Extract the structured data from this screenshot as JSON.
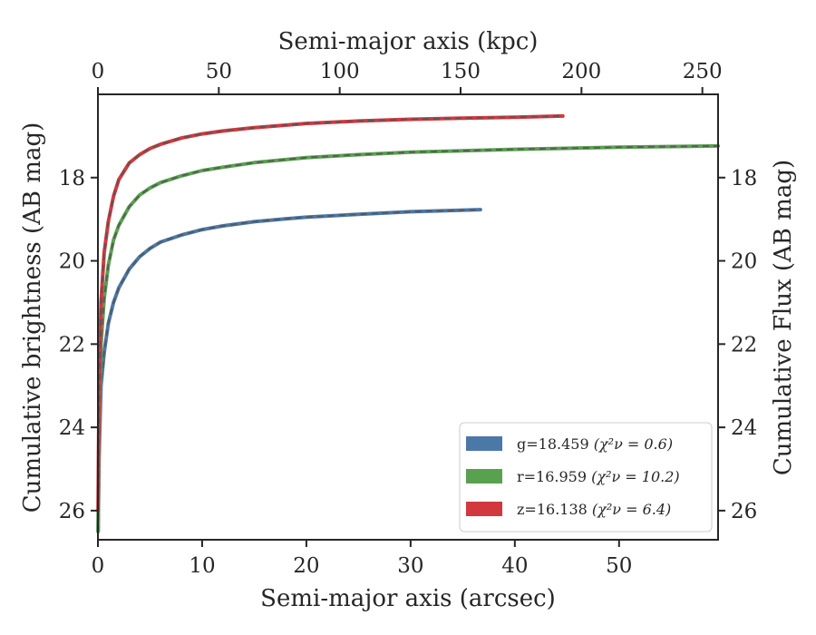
{
  "chart_data": {
    "type": "line",
    "title": "",
    "xlabel": "Semi-major axis (arcsec)",
    "xlabel_top": "Semi-major axis (kpc)",
    "ylabel": "Cumulative brightness (AB mag)",
    "ylabel_right": "Cumulative Flux (AB mag)",
    "xlim": [
      0,
      59.5
    ],
    "xlim_top": [
      0,
      256.5
    ],
    "ylim": [
      26.7,
      16.0
    ],
    "y_inverted": true,
    "xticks": [
      0,
      10,
      20,
      30,
      40,
      50
    ],
    "xticks_top": [
      0,
      50,
      100,
      150,
      200,
      250
    ],
    "yticks": [
      18,
      20,
      22,
      24,
      26
    ],
    "grid": false,
    "legend": {
      "placement": "bottom-right"
    },
    "series": [
      {
        "name": "g=18.459 ",
        "chi_label": "(χ²ν = 0.6)",
        "color": "#4c78a8",
        "model_color": "#555555",
        "x": [
          0.02,
          0.1,
          0.3,
          0.6,
          1.0,
          1.5,
          2.0,
          3.0,
          4.0,
          5.0,
          6.0,
          8.0,
          10.0,
          12.0,
          15.0,
          18.0,
          20.0,
          25.0,
          30.0,
          36.7
        ],
        "y": [
          26.5,
          24.8,
          23.0,
          22.2,
          21.5,
          21.0,
          20.65,
          20.2,
          19.9,
          19.7,
          19.55,
          19.38,
          19.25,
          19.16,
          19.06,
          18.99,
          18.95,
          18.88,
          18.82,
          18.77
        ]
      },
      {
        "name": "r=16.959 ",
        "chi_label": "(χ²ν = 10.2)",
        "color": "#59a14f",
        "model_color": "#555555",
        "x": [
          0.02,
          0.1,
          0.3,
          0.6,
          1.0,
          1.5,
          2.0,
          3.0,
          4.0,
          5.0,
          6.0,
          8.0,
          10.0,
          12.0,
          15.0,
          20.0,
          25.0,
          30.0,
          40.0,
          50.0,
          59.5
        ],
        "y": [
          26.5,
          24.3,
          22.0,
          20.9,
          20.1,
          19.5,
          19.15,
          18.7,
          18.42,
          18.25,
          18.12,
          17.96,
          17.83,
          17.75,
          17.64,
          17.52,
          17.45,
          17.39,
          17.32,
          17.27,
          17.24
        ]
      },
      {
        "name": "z=16.138 ",
        "chi_label": "(χ²ν = 6.4)",
        "color": "#d1393f",
        "model_color": "#555555",
        "x": [
          0.02,
          0.1,
          0.3,
          0.6,
          1.0,
          1.5,
          2.0,
          3.0,
          4.0,
          5.0,
          6.0,
          8.0,
          10.0,
          12.0,
          15.0,
          20.0,
          25.0,
          30.0,
          35.0,
          40.0,
          44.6
        ],
        "y": [
          26.0,
          23.5,
          21.0,
          19.8,
          19.05,
          18.45,
          18.05,
          17.65,
          17.45,
          17.3,
          17.2,
          17.05,
          16.95,
          16.88,
          16.8,
          16.7,
          16.64,
          16.6,
          16.57,
          16.55,
          16.52
        ]
      }
    ]
  }
}
